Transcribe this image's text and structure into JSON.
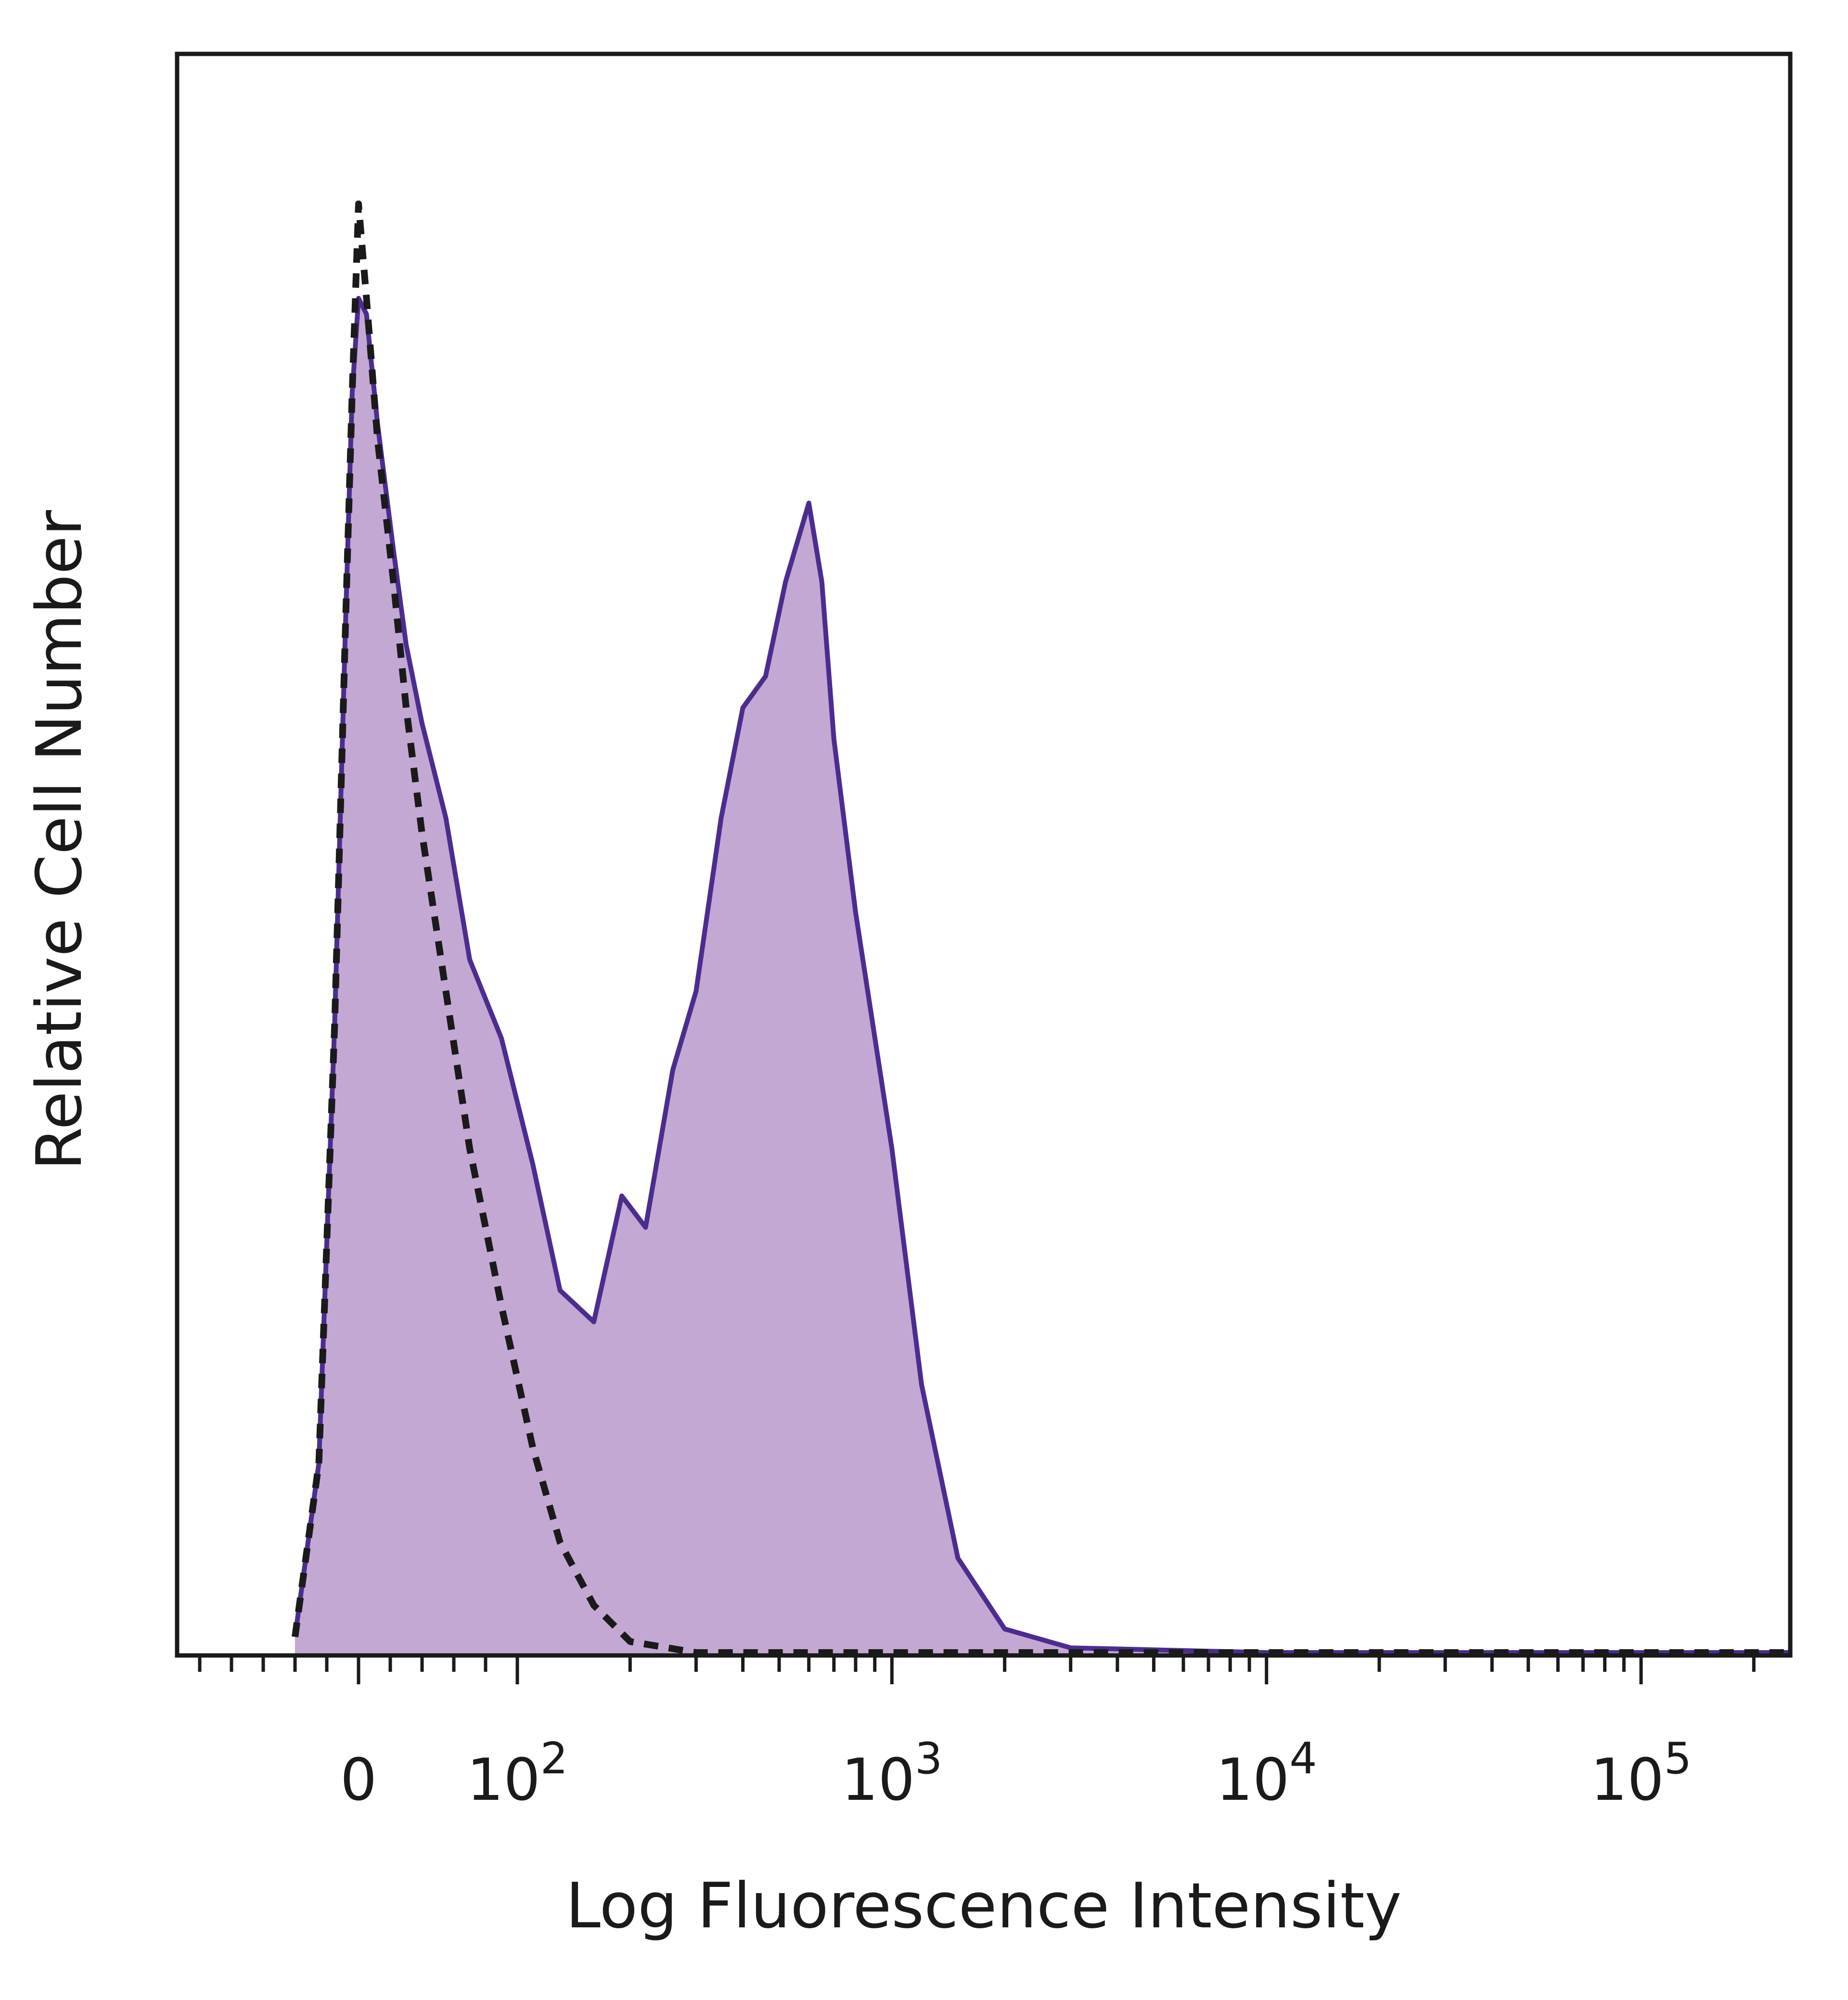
{
  "chart_data": {
    "type": "area",
    "title": "",
    "xlabel": "Log Fluorescence Intensity",
    "ylabel": "Relative Cell Number",
    "x_scale": "biexponential (linear near 0, log above 10^2)",
    "xticks": [
      {
        "label": "0",
        "base": "0",
        "exp": ""
      },
      {
        "label": "10^2",
        "base": "10",
        "exp": "2"
      },
      {
        "label": "10^3",
        "base": "10",
        "exp": "3"
      },
      {
        "label": "10^4",
        "base": "10",
        "exp": "4"
      },
      {
        "label": "10^5",
        "base": "10",
        "exp": "5"
      }
    ],
    "y_tick_labels": "none",
    "ylim": [
      0,
      100
    ],
    "grid": false,
    "legend": "none",
    "series": [
      {
        "style": "filled area, solid outline",
        "fill_color": "#c4a8d4",
        "line_color": "#4b2d8f",
        "points": [
          {
            "x": -40,
            "y": 1
          },
          {
            "x": -25,
            "y": 12
          },
          {
            "x": -15,
            "y": 40
          },
          {
            "x": -8,
            "y": 66
          },
          {
            "x": -4,
            "y": 80
          },
          {
            "x": 0,
            "y": 86
          },
          {
            "x": 5,
            "y": 85
          },
          {
            "x": 12,
            "y": 78
          },
          {
            "x": 22,
            "y": 70
          },
          {
            "x": 30,
            "y": 64
          },
          {
            "x": 40,
            "y": 59
          },
          {
            "x": 55,
            "y": 53
          },
          {
            "x": 70,
            "y": 44
          },
          {
            "x": 90,
            "y": 39
          },
          {
            "x": 110,
            "y": 31
          },
          {
            "x": 130,
            "y": 23
          },
          {
            "x": 160,
            "y": 21
          },
          {
            "x": 190,
            "y": 29
          },
          {
            "x": 220,
            "y": 27
          },
          {
            "x": 260,
            "y": 37
          },
          {
            "x": 300,
            "y": 42
          },
          {
            "x": 350,
            "y": 53
          },
          {
            "x": 400,
            "y": 60
          },
          {
            "x": 460,
            "y": 62
          },
          {
            "x": 520,
            "y": 68
          },
          {
            "x": 600,
            "y": 73
          },
          {
            "x": 650,
            "y": 68
          },
          {
            "x": 700,
            "y": 58
          },
          {
            "x": 800,
            "y": 47
          },
          {
            "x": 1000,
            "y": 32
          },
          {
            "x": 1200,
            "y": 17
          },
          {
            "x": 1500,
            "y": 6
          },
          {
            "x": 2000,
            "y": 1.5
          },
          {
            "x": 3000,
            "y": 0.3
          },
          {
            "x": 10000,
            "y": 0
          },
          {
            "x": 100000,
            "y": 0
          },
          {
            "x": 250000,
            "y": 0
          }
        ]
      },
      {
        "style": "dashed line",
        "line_color": "#1a1a1a",
        "points": [
          {
            "x": -40,
            "y": 1
          },
          {
            "x": -25,
            "y": 12
          },
          {
            "x": -15,
            "y": 40
          },
          {
            "x": -8,
            "y": 66
          },
          {
            "x": -4,
            "y": 80
          },
          {
            "x": 0,
            "y": 92
          },
          {
            "x": 5,
            "y": 86
          },
          {
            "x": 12,
            "y": 77
          },
          {
            "x": 22,
            "y": 68
          },
          {
            "x": 30,
            "y": 60
          },
          {
            "x": 40,
            "y": 52
          },
          {
            "x": 55,
            "y": 42
          },
          {
            "x": 70,
            "y": 32
          },
          {
            "x": 90,
            "y": 22
          },
          {
            "x": 110,
            "y": 13
          },
          {
            "x": 130,
            "y": 7
          },
          {
            "x": 160,
            "y": 3
          },
          {
            "x": 200,
            "y": 0.7
          },
          {
            "x": 300,
            "y": 0
          },
          {
            "x": 250000,
            "y": 0
          }
        ]
      }
    ]
  }
}
